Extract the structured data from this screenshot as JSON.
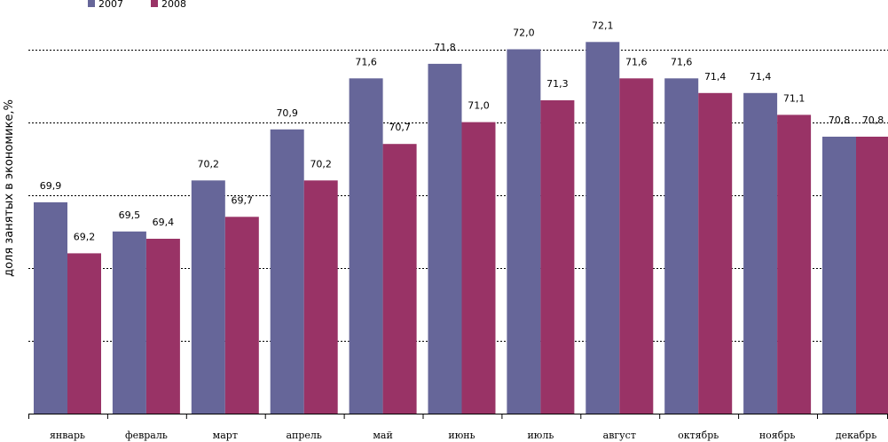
{
  "chart_data": {
    "type": "bar",
    "title": "",
    "xlabel": "",
    "ylabel": "доля занятых в экономике,%",
    "categories": [
      "январь",
      "февраль",
      "март",
      "апрель",
      "май",
      "июнь",
      "июль",
      "август",
      "октябрь",
      "ноябрь",
      "декабрь"
    ],
    "series": [
      {
        "name": "2007",
        "color": "#666699",
        "values": [
          69.9,
          69.5,
          70.2,
          70.9,
          71.6,
          71.8,
          72.0,
          72.1,
          71.6,
          71.4,
          70.8
        ]
      },
      {
        "name": "2008",
        "color": "#993366",
        "values": [
          69.2,
          69.4,
          69.7,
          70.2,
          70.7,
          71.0,
          71.3,
          71.6,
          71.4,
          71.1,
          70.8
        ]
      }
    ],
    "value_labels": [
      [
        "69,9",
        "69,5",
        "70,2",
        "70,9",
        "71,6",
        "71,8",
        "72,0",
        "72,1",
        "71,6",
        "71,4",
        "70,8"
      ],
      [
        "69,2",
        "69,4",
        "69,7",
        "70,2",
        "70,7",
        "71,0",
        "71,3",
        "71,6",
        "71,4",
        "71,1",
        "70,8"
      ]
    ],
    "ylim": [
      67,
      72
    ],
    "gridlines": true,
    "legend_position": "top-left"
  }
}
